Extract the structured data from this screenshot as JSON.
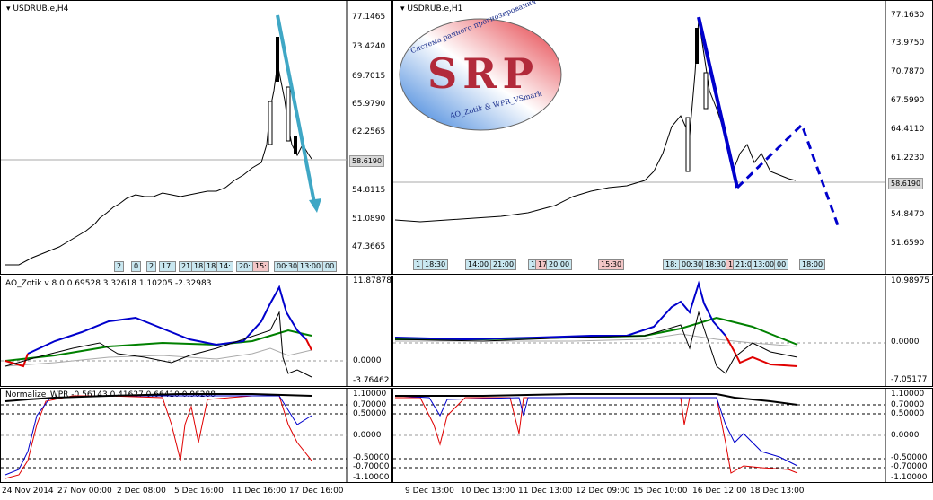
{
  "left_chart": {
    "symbol": "USDRUB.e,H4",
    "price_scale": [
      "77.1465",
      "73.4240",
      "69.7015",
      "65.9790",
      "62.2565",
      "58.6190",
      "54.8115",
      "51.0890",
      "47.3665"
    ],
    "current_price": "58.6190",
    "time_labels": [
      "24 Nov 2014",
      "27 Nov 00:00",
      "2 Dec 08:00",
      "5 Dec 16:00",
      "11 Dec 16:00",
      "17 Dec 16:00"
    ],
    "badges": [
      "2",
      "0",
      "2",
      "17:",
      "21",
      "18",
      "18",
      "14:",
      "20:",
      "15:",
      "00:30",
      "13:00",
      "00"
    ]
  },
  "right_chart": {
    "symbol": "USDRUB.e,H1",
    "price_scale": [
      "77.1630",
      "73.9750",
      "70.7870",
      "67.5990",
      "64.4110",
      "61.2230",
      "58.6190",
      "54.8470",
      "51.6590"
    ],
    "current_price": "58.6190",
    "time_labels": [
      "9 Dec 13:00",
      "10 Dec 13:00",
      "11 Dec 13:00",
      "12 Dec 09:00",
      "15 Dec 10:00",
      "16 Dec 12:00",
      "18 Dec 13:00"
    ],
    "badges": [
      "1",
      "18:30",
      "14:00",
      "21:00",
      "1",
      "17",
      "20:00",
      "15:30",
      "18:",
      "00:30",
      "18:30",
      "1",
      "21:0",
      "13:00",
      "00",
      "18:00"
    ]
  },
  "ao_indicator": {
    "label": "AO_Zotik v 8.0 0.69528 3.32618 1.10205 -2.32983",
    "left_scale": [
      "11.87878",
      "0.0000",
      "-3.76462"
    ],
    "right_scale": [
      "10.98975",
      "0.0000",
      "-7.05177"
    ]
  },
  "wpr_indicator": {
    "label": "Normalize_WPR -0.56143 0.41627 0.66410 0.96288",
    "scale": [
      "1.10000",
      "0.70000",
      "0.50000",
      "0.0000",
      "-0.50000",
      "-0.70000",
      "-1.10000"
    ]
  },
  "logo": {
    "letters": "SRP",
    "top_text": "Система раннего прогнозирования",
    "bottom_text": "AO_Zotik & WPR_VSmark"
  },
  "colors": {
    "ao_blue": "#0000cc",
    "ao_green": "#008000",
    "ao_red": "#e00000",
    "arrow_cyan": "#3fa7c5",
    "forecast_blue": "#0000cc"
  }
}
